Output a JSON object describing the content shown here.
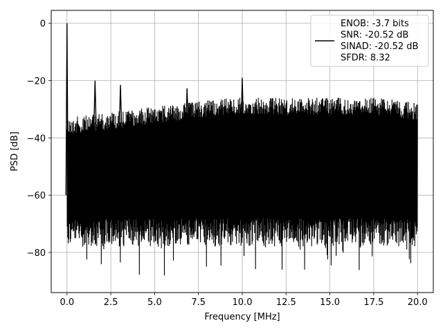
{
  "chart_data": {
    "type": "line",
    "xlabel": "Frequency [MHz]",
    "ylabel": "PSD [dB]",
    "xlim": [
      -0.9,
      20.9
    ],
    "ylim": [
      -94,
      4.5
    ],
    "xticks": [
      0.0,
      2.5,
      5.0,
      7.5,
      10.0,
      12.5,
      15.0,
      17.5,
      20.0
    ],
    "xtick_labels": [
      "0.0",
      "2.5",
      "5.0",
      "7.5",
      "10.0",
      "12.5",
      "15.0",
      "17.5",
      "20.0"
    ],
    "yticks": [
      0,
      -20,
      -40,
      -60,
      -80
    ],
    "ytick_labels": [
      "0",
      "−20",
      "−40",
      "−60",
      "−80"
    ],
    "grid": true,
    "legend_position": "top-right",
    "series": [
      {
        "color": "#000000",
        "x_range": [
          0.0,
          20.0
        ],
        "noise_top_dB": [
          -33,
          -26
        ],
        "noise_bottom_dB": [
          -89,
          -75
        ],
        "peaks": [
          {
            "x": 0.0,
            "y": 0
          },
          {
            "x": 1.6,
            "y": -20
          },
          {
            "x": 3.05,
            "y": -21.5
          },
          {
            "x": 10.0,
            "y": -19
          },
          {
            "x": 6.85,
            "y": -22.7
          }
        ]
      }
    ],
    "legend_lines": [
      "ENOB: -3.7 bits",
      "SNR: -20.52 dB",
      "SINAD: -20.52 dB",
      "SFDR: 8.32"
    ]
  }
}
